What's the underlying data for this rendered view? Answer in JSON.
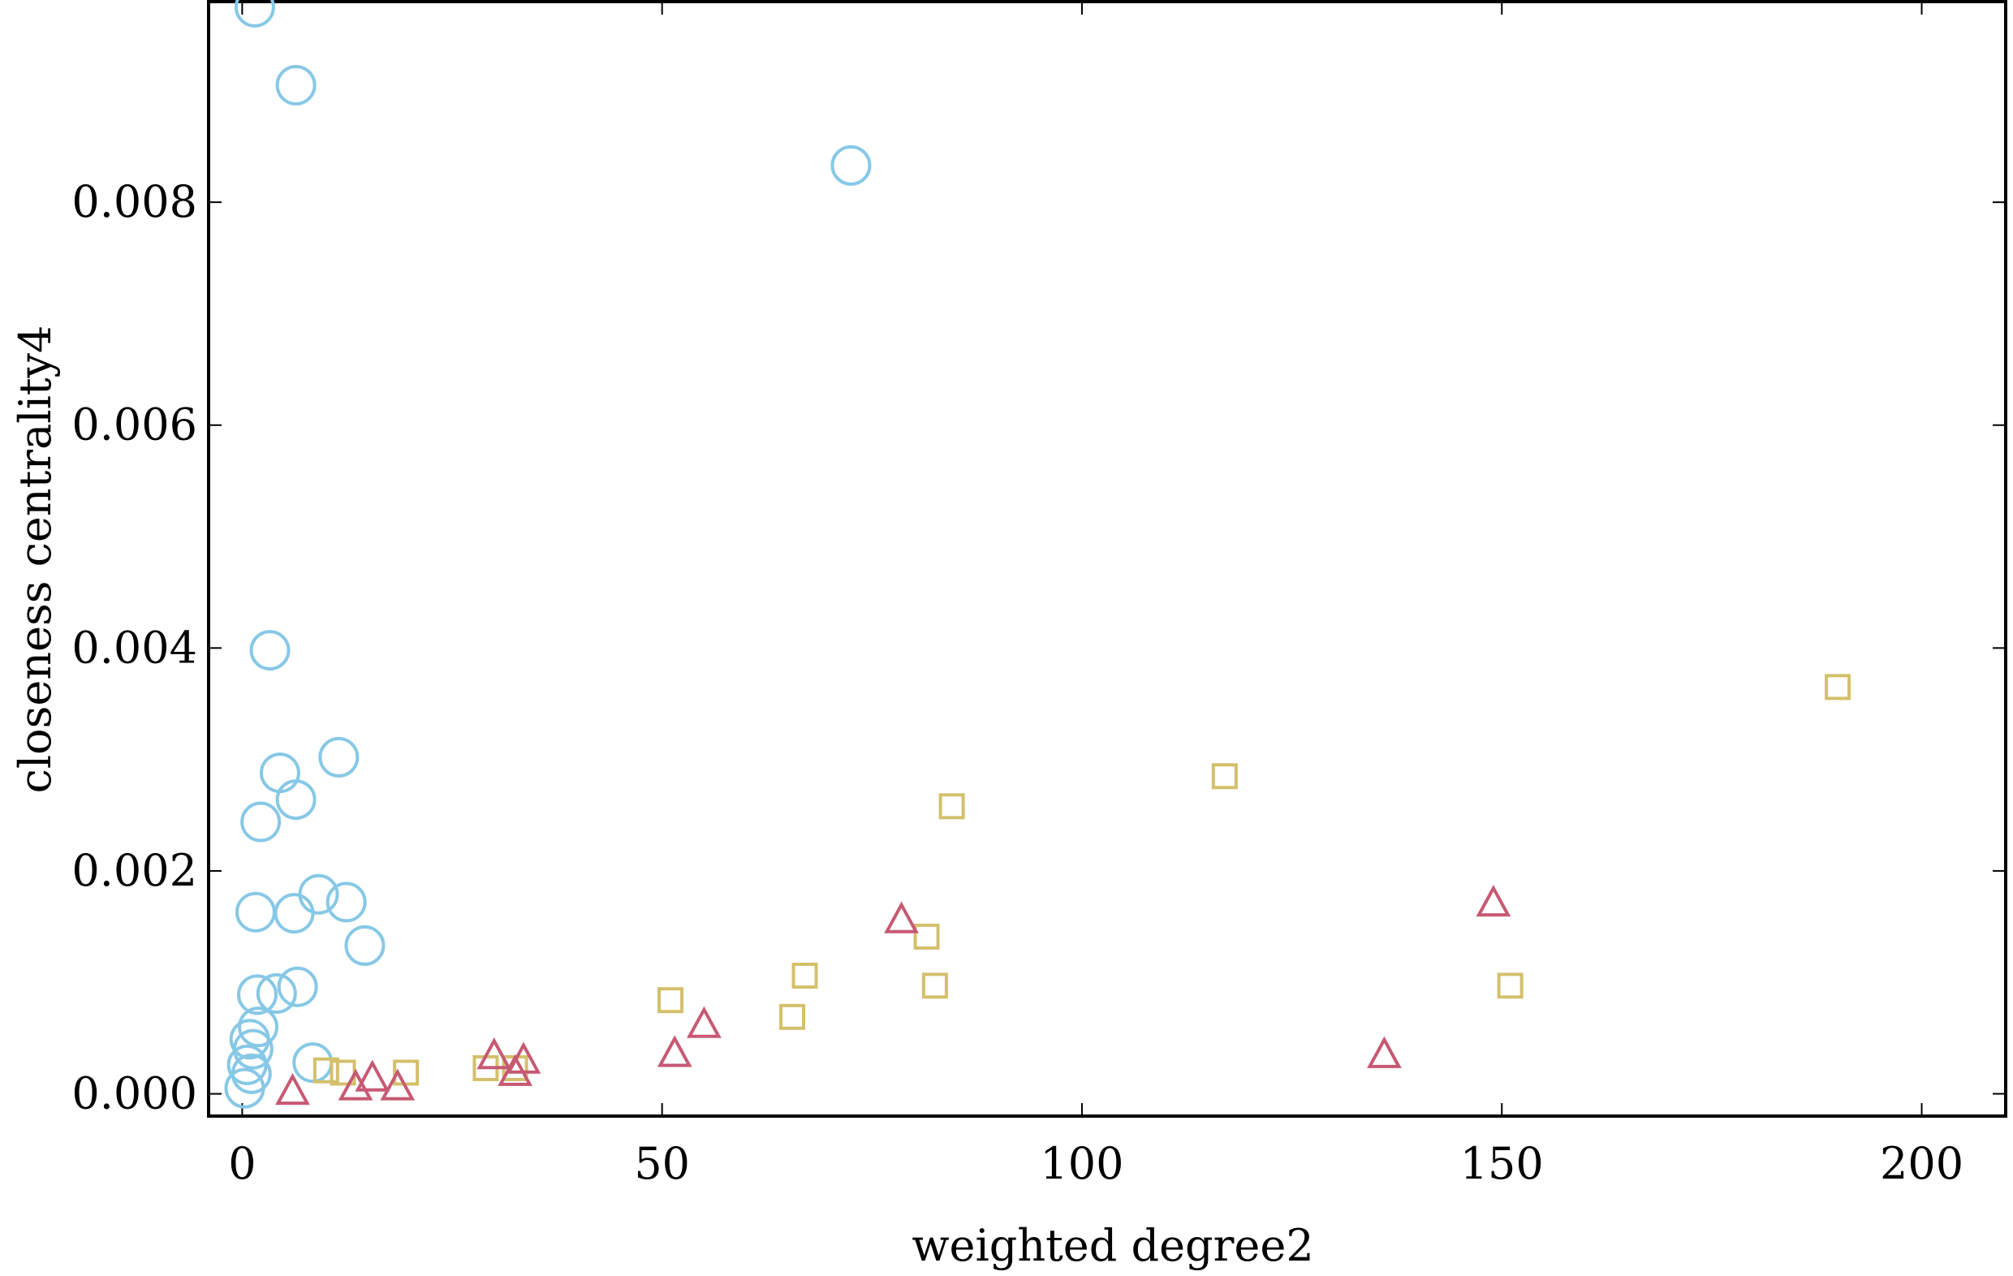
{
  "chart_data": {
    "type": "scatter",
    "title": "",
    "xlabel": "weighted degree2",
    "ylabel": "closeness centrality4",
    "xlim": [
      -4,
      210
    ],
    "ylim": [
      -0.0002,
      0.0098
    ],
    "x_ticks": [
      0,
      50,
      100,
      150,
      200
    ],
    "x_tick_labels": [
      "0",
      "50",
      "100",
      "150",
      "200"
    ],
    "y_ticks": [
      0,
      0.002,
      0.004,
      0.006,
      0.008
    ],
    "y_tick_labels": [
      "0.000",
      "0.002",
      "0.004",
      "0.006",
      "0.008"
    ],
    "grid": false,
    "legend": "none",
    "series": [
      {
        "marker": "circle",
        "color": "#87c8e6",
        "points": [
          [
            1.5,
            0.00975
          ],
          [
            6.4,
            0.00905
          ],
          [
            72.5,
            0.00833
          ],
          [
            3.3,
            0.00398
          ],
          [
            11.5,
            0.00302
          ],
          [
            4.5,
            0.00288
          ],
          [
            6.4,
            0.00264
          ],
          [
            2.2,
            0.00244
          ],
          [
            9.1,
            0.00179
          ],
          [
            12.4,
            0.00172
          ],
          [
            1.6,
            0.00163
          ],
          [
            6.2,
            0.00162
          ],
          [
            14.6,
            0.00133
          ],
          [
            1.8,
            0.00089
          ],
          [
            4.1,
            0.0009
          ],
          [
            6.6,
            0.00096
          ],
          [
            1.9,
            0.0006
          ],
          [
            0.9,
            0.00049
          ],
          [
            1.3,
            0.0004
          ],
          [
            0.6,
            0.00026
          ],
          [
            1.1,
            0.00018
          ],
          [
            8.4,
            0.00028
          ],
          [
            0.3,
            5e-05
          ]
        ]
      },
      {
        "marker": "square",
        "color": "#d4c06c",
        "points": [
          [
            190,
            0.00365
          ],
          [
            117,
            0.00285
          ],
          [
            84.5,
            0.00258
          ],
          [
            81.5,
            0.00141
          ],
          [
            67,
            0.00106
          ],
          [
            82.5,
            0.00097
          ],
          [
            151,
            0.00097
          ],
          [
            51,
            0.00084
          ],
          [
            65.5,
            0.00069
          ],
          [
            10,
            0.00021
          ],
          [
            12,
            0.00019
          ],
          [
            19.5,
            0.00019
          ],
          [
            29,
            0.00023
          ],
          [
            32.5,
            0.00023
          ]
        ]
      },
      {
        "marker": "triangle",
        "color": "#c75973",
        "points": [
          [
            78.5,
            0.00155
          ],
          [
            149,
            0.0017
          ],
          [
            55,
            0.00061
          ],
          [
            51.5,
            0.00035
          ],
          [
            136,
            0.00034
          ],
          [
            30,
            0.00033
          ],
          [
            33.5,
            0.00029
          ],
          [
            32.5,
            0.00018
          ],
          [
            15.5,
            0.00013
          ],
          [
            13.5,
            5e-05
          ],
          [
            18.5,
            5e-05
          ],
          [
            6,
            1e-05
          ]
        ]
      }
    ]
  }
}
